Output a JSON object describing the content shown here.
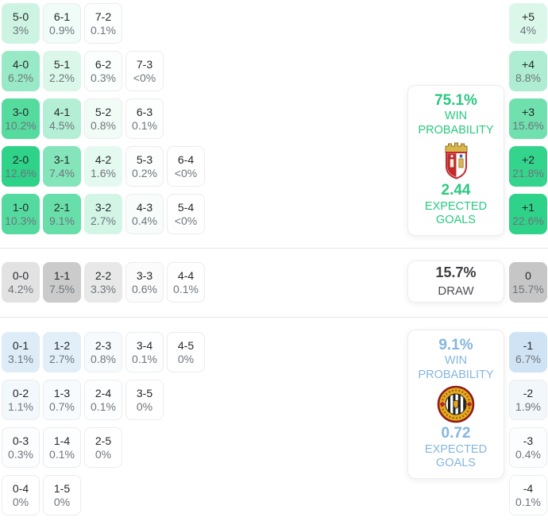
{
  "theme": {
    "home_accent": "#2ed289",
    "away_accent": "#74aede",
    "draw_accent": "#cbcbcb",
    "home_text": "#29c97f",
    "away_text": "#85b6df",
    "divider": "#e7e7e7"
  },
  "chart_data": {
    "type": "heatmap",
    "title": "Correct-score probability matrix with win/draw probabilities, goal-difference distribution and expected goals",
    "legend_position": "none",
    "home": {
      "win_probability_pct": 75.1,
      "win_probability_display": "75.1%",
      "win_label": "WIN PROBABILITY",
      "expected_goals": 2.44,
      "expected_goals_display": "2.44",
      "expected_goals_label": "EXPECTED GOALS",
      "crest_icon": "braga-crest",
      "scores": [
        {
          "score": "5-0",
          "pct": "3%",
          "row": 0,
          "col": 0,
          "bg": "#cdf4e3"
        },
        {
          "score": "6-1",
          "pct": "0.9%",
          "row": 0,
          "col": 1,
          "bg": "#f0fcf7"
        },
        {
          "score": "7-2",
          "pct": "0.1%",
          "row": 0,
          "col": 2,
          "bg": "#fdfefe"
        },
        {
          "score": "4-0",
          "pct": "6.2%",
          "row": 1,
          "col": 0,
          "bg": "#98e9c5"
        },
        {
          "score": "5-1",
          "pct": "2.2%",
          "row": 1,
          "col": 1,
          "bg": "#daf7ea"
        },
        {
          "score": "6-2",
          "pct": "0.3%",
          "row": 1,
          "col": 2,
          "bg": "#fafefc"
        },
        {
          "score": "7-3",
          "pct": "<0%",
          "row": 1,
          "col": 3,
          "bg": "#ffffff"
        },
        {
          "score": "3-0",
          "pct": "10.2%",
          "row": 2,
          "col": 0,
          "bg": "#56db9f"
        },
        {
          "score": "4-1",
          "pct": "4.5%",
          "row": 2,
          "col": 1,
          "bg": "#b4efd5"
        },
        {
          "score": "5-2",
          "pct": "0.8%",
          "row": 2,
          "col": 2,
          "bg": "#f2fcf7"
        },
        {
          "score": "6-3",
          "pct": "0.1%",
          "row": 2,
          "col": 3,
          "bg": "#fdfefe"
        },
        {
          "score": "2-0",
          "pct": "12.6%",
          "row": 3,
          "col": 0,
          "bg": "#2ed289"
        },
        {
          "score": "3-1",
          "pct": "7.4%",
          "row": 3,
          "col": 1,
          "bg": "#84e5ba"
        },
        {
          "score": "4-2",
          "pct": "1.6%",
          "row": 3,
          "col": 2,
          "bg": "#e4f9f0"
        },
        {
          "score": "5-3",
          "pct": "0.2%",
          "row": 3,
          "col": 3,
          "bg": "#fbfefd"
        },
        {
          "score": "6-4",
          "pct": "<0%",
          "row": 3,
          "col": 4,
          "bg": "#ffffff"
        },
        {
          "score": "1-0",
          "pct": "10.3%",
          "row": 4,
          "col": 0,
          "bg": "#54da9f"
        },
        {
          "score": "2-1",
          "pct": "9.1%",
          "row": 4,
          "col": 1,
          "bg": "#68deaa"
        },
        {
          "score": "3-2",
          "pct": "2.7%",
          "row": 4,
          "col": 2,
          "bg": "#d2f5e6"
        },
        {
          "score": "4-3",
          "pct": "0.4%",
          "row": 4,
          "col": 3,
          "bg": "#f8fdfb"
        },
        {
          "score": "5-4",
          "pct": "<0%",
          "row": 4,
          "col": 4,
          "bg": "#ffffff"
        }
      ],
      "goal_difference": [
        {
          "diff": "+5",
          "pct": "4%",
          "row": 0,
          "bg": "#daf7ea"
        },
        {
          "diff": "+4",
          "pct": "8.8%",
          "row": 1,
          "bg": "#aeedd1"
        },
        {
          "diff": "+3",
          "pct": "15.6%",
          "row": 2,
          "bg": "#6fe0ae"
        },
        {
          "diff": "+2",
          "pct": "21.8%",
          "row": 3,
          "bg": "#35d48d"
        },
        {
          "diff": "+1",
          "pct": "22.6%",
          "row": 4,
          "bg": "#2ed289"
        }
      ]
    },
    "draw": {
      "probability_pct": 15.7,
      "probability_display": "15.7%",
      "label": "DRAW",
      "scores": [
        {
          "score": "0-0",
          "pct": "4.2%",
          "row": 0,
          "col": 0,
          "bg": "#e2e2e2"
        },
        {
          "score": "1-1",
          "pct": "7.5%",
          "row": 0,
          "col": 1,
          "bg": "#cbcbcb"
        },
        {
          "score": "2-2",
          "pct": "3.3%",
          "row": 0,
          "col": 2,
          "bg": "#e8e8e8"
        },
        {
          "score": "3-3",
          "pct": "0.6%",
          "row": 0,
          "col": 3,
          "bg": "#fbfbfb"
        },
        {
          "score": "4-4",
          "pct": "0.1%",
          "row": 0,
          "col": 4,
          "bg": "#fefefe"
        }
      ],
      "goal_difference": [
        {
          "diff": "0",
          "pct": "15.7%",
          "row": 0,
          "bg": "#c6c6c6"
        }
      ]
    },
    "away": {
      "win_probability_pct": 9.1,
      "win_probability_display": "9.1%",
      "win_label": "WIN PROBABILITY",
      "expected_goals": 0.72,
      "expected_goals_display": "0.72",
      "expected_goals_label": "EXPECTED GOALS",
      "crest_icon": "nacional-crest",
      "scores": [
        {
          "score": "0-1",
          "pct": "3.1%",
          "row": 0,
          "col": 0,
          "bg": "#deecf7"
        },
        {
          "score": "1-2",
          "pct": "2.7%",
          "row": 0,
          "col": 1,
          "bg": "#e2eef8"
        },
        {
          "score": "2-3",
          "pct": "0.8%",
          "row": 0,
          "col": 2,
          "bg": "#f6fafd"
        },
        {
          "score": "3-4",
          "pct": "0.1%",
          "row": 0,
          "col": 3,
          "bg": "#fdfeff"
        },
        {
          "score": "4-5",
          "pct": "0%",
          "row": 0,
          "col": 4,
          "bg": "#ffffff"
        },
        {
          "score": "0-2",
          "pct": "1.1%",
          "row": 1,
          "col": 0,
          "bg": "#f3f8fc"
        },
        {
          "score": "1-3",
          "pct": "0.7%",
          "row": 1,
          "col": 1,
          "bg": "#f8fbfd"
        },
        {
          "score": "2-4",
          "pct": "0.1%",
          "row": 1,
          "col": 2,
          "bg": "#fdfeff"
        },
        {
          "score": "3-5",
          "pct": "0%",
          "row": 1,
          "col": 3,
          "bg": "#ffffff"
        },
        {
          "score": "0-3",
          "pct": "0.3%",
          "row": 2,
          "col": 0,
          "bg": "#fcfdfe"
        },
        {
          "score": "1-4",
          "pct": "0.1%",
          "row": 2,
          "col": 1,
          "bg": "#fdfeff"
        },
        {
          "score": "2-5",
          "pct": "0%",
          "row": 2,
          "col": 2,
          "bg": "#ffffff"
        },
        {
          "score": "0-4",
          "pct": "0%",
          "row": 3,
          "col": 0,
          "bg": "#ffffff"
        },
        {
          "score": "1-5",
          "pct": "0%",
          "row": 3,
          "col": 1,
          "bg": "#ffffff"
        }
      ],
      "goal_difference": [
        {
          "diff": "-1",
          "pct": "6.7%",
          "row": 0,
          "bg": "#d0e3f4"
        },
        {
          "diff": "-2",
          "pct": "1.9%",
          "row": 1,
          "bg": "#f2f7fc"
        },
        {
          "diff": "-3",
          "pct": "0.4%",
          "row": 2,
          "bg": "#fcfdfe"
        },
        {
          "diff": "-4",
          "pct": "0.1%",
          "row": 3,
          "bg": "#feffff"
        }
      ]
    }
  }
}
